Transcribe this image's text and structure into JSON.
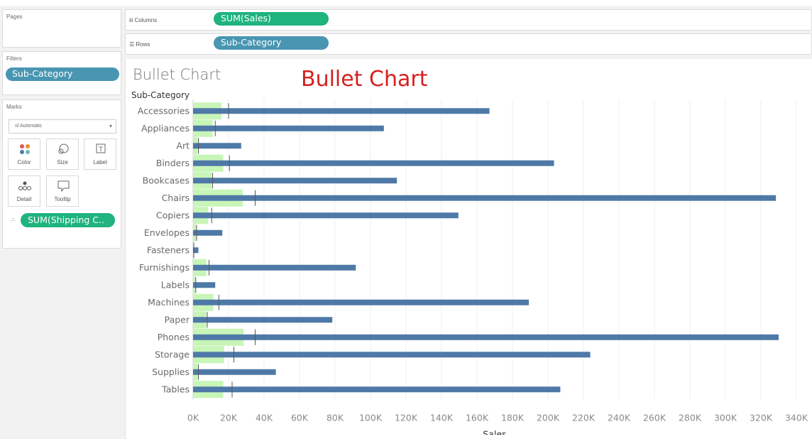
{
  "left_panel": {
    "pages_title": "Pages",
    "filters_title": "Filters",
    "filter_pill": "Sub-Category",
    "marks_title": "Marks",
    "mark_type": "Automatic",
    "mark_buttons": [
      "Color",
      "Size",
      "Label",
      "Detail",
      "Tooltip"
    ],
    "detail_pill": "SUM(Shipping C.."
  },
  "shelves": {
    "columns_label": "Columns",
    "columns_pill": "SUM(Sales)",
    "rows_label": "Rows",
    "rows_pill": "Sub-Category"
  },
  "view": {
    "title": "Bullet Chart",
    "annotation": "Bullet Chart",
    "rows_header": "Sub-Category"
  },
  "colors": {
    "bar": "#4e79a7",
    "band": "#c8f5b8",
    "reference_line": "#555555",
    "pill_blue": "#4996b2",
    "pill_green": "#1fb37e",
    "title_red": "#d42020"
  },
  "chart_data": {
    "type": "bar",
    "orientation": "horizontal",
    "categories": [
      "Accessories",
      "Appliances",
      "Art",
      "Binders",
      "Bookcases",
      "Chairs",
      "Copiers",
      "Envelopes",
      "Fasteners",
      "Furnishings",
      "Labels",
      "Machines",
      "Paper",
      "Phones",
      "Storage",
      "Supplies",
      "Tables"
    ],
    "series": [
      {
        "values": [
          167026,
          107532,
          27119,
          203413,
          114880,
          328449,
          149528,
          16476,
          3024,
          91705,
          12486,
          189239,
          78479,
          330007,
          223844,
          46674,
          206966
        ]
      }
    ],
    "bands": [
      16000,
      11000,
      2500,
      17000,
      10500,
      28000,
      8500,
      1700,
      300,
      7500,
      1300,
      11500,
      7500,
      28500,
      17500,
      2500,
      17000
    ],
    "reference_lines": [
      20000,
      12500,
      3000,
      20500,
      11000,
      35000,
      10500,
      2000,
      400,
      9000,
      1500,
      14500,
      8000,
      35000,
      23000,
      3000,
      22000
    ],
    "xlabel": "Sales",
    "ylabel": "Sub-Category",
    "xlim": [
      0,
      340000
    ],
    "xticks": [
      "0K",
      "20K",
      "40K",
      "60K",
      "80K",
      "100K",
      "120K",
      "140K",
      "160K",
      "180K",
      "200K",
      "220K",
      "240K",
      "260K",
      "280K",
      "300K",
      "320K",
      "340K"
    ],
    "grid": true
  }
}
